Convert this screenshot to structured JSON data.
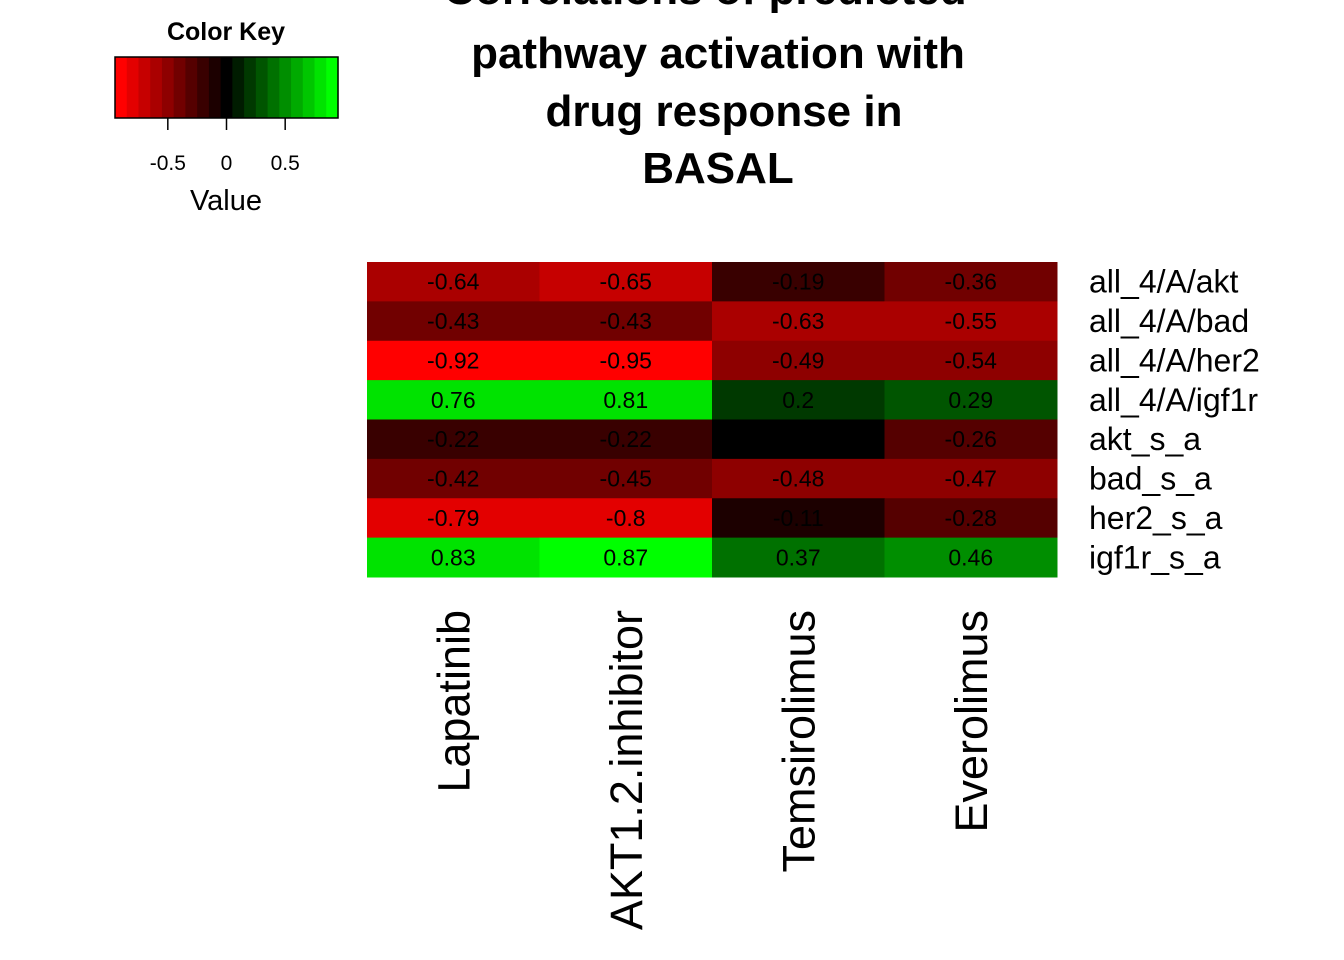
{
  "chart_data": {
    "type": "heatmap",
    "title": [
      "Correlations of predicted",
      "pathway activation with",
      "drug response in",
      "BASAL"
    ],
    "color_key": {
      "title": "Color Key",
      "xlabel": "Value",
      "ticks": [
        "-0.5",
        "0",
        "0.5"
      ],
      "tick_values": [
        -0.5,
        0,
        0.5
      ],
      "range": [
        -0.95,
        0.95
      ],
      "low_color": "#ff0000",
      "mid_color": "#000000",
      "high_color": "#00ff00",
      "n_bins": 19
    },
    "rows": [
      "all_4/A/akt",
      "all_4/A/bad",
      "all_4/A/her2",
      "all_4/A/igf1r",
      "akt_s_a",
      "bad_s_a",
      "her2_s_a",
      "igf1r_s_a"
    ],
    "columns": [
      "Lapatinib",
      "AKT1.2.inhibitor",
      "Temsirolimus",
      "Everolimus"
    ],
    "values": [
      [
        -0.64,
        -0.65,
        -0.19,
        -0.36
      ],
      [
        -0.43,
        -0.43,
        -0.63,
        -0.55
      ],
      [
        -0.92,
        -0.95,
        -0.49,
        -0.54
      ],
      [
        0.76,
        0.81,
        0.2,
        0.29
      ],
      [
        -0.22,
        -0.22,
        null,
        -0.26
      ],
      [
        -0.42,
        -0.45,
        -0.48,
        -0.47
      ],
      [
        -0.79,
        -0.8,
        -0.11,
        -0.28
      ],
      [
        0.83,
        0.87,
        0.37,
        0.46
      ]
    ],
    "cell_labels": [
      [
        "-0.64",
        "-0.65",
        "-0.19",
        "-0.36"
      ],
      [
        "-0.43",
        "-0.43",
        "-0.63",
        "-0.55"
      ],
      [
        "-0.92",
        "-0.95",
        "-0.49",
        "-0.54"
      ],
      [
        "0.76",
        "0.81",
        "0.2",
        "0.29"
      ],
      [
        "-0.22",
        "-0.22",
        "",
        "-0.26"
      ],
      [
        "-0.42",
        "-0.45",
        "-0.48",
        "-0.47"
      ],
      [
        "-0.79",
        "-0.8",
        "-0.11",
        "-0.28"
      ],
      [
        "0.83",
        "0.87",
        "0.37",
        "0.46"
      ]
    ]
  }
}
